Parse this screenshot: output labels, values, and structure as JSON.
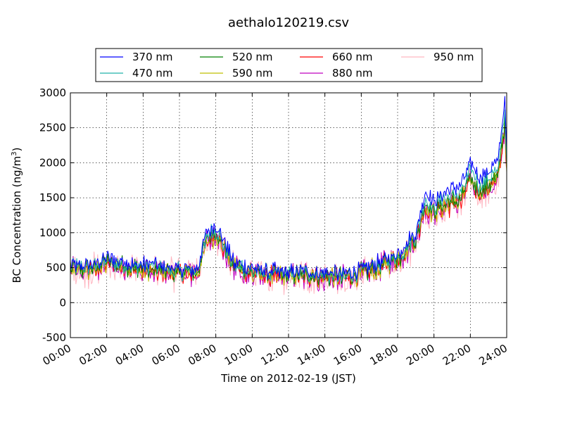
{
  "chart_data": {
    "type": "line",
    "title": "aethalo120219.csv",
    "xlabel": "Time on 2012-02-19 (JST)",
    "ylabel": "BC Concentration (ng/m³)",
    "ylabel_parts": {
      "main": "BC Concentration (ng/m",
      "sup": "3",
      "end": ")"
    },
    "xlim_hours": [
      0,
      24
    ],
    "ylim": [
      -500,
      3000
    ],
    "x_tick_labels": [
      "00:00",
      "02:00",
      "04:00",
      "06:00",
      "08:00",
      "10:00",
      "12:00",
      "14:00",
      "16:00",
      "18:00",
      "20:00",
      "22:00",
      "24:00"
    ],
    "x_tick_hours": [
      0,
      2,
      4,
      6,
      8,
      10,
      12,
      14,
      16,
      18,
      20,
      22,
      24
    ],
    "y_ticks": [
      -500,
      0,
      500,
      1000,
      1500,
      2000,
      2500,
      3000
    ],
    "grid": true,
    "legend_placement": "top, above plot, 4 columns",
    "baseline_keypoints": {
      "hours": [
        0,
        1,
        2,
        3,
        4,
        5,
        6,
        7,
        7.5,
        8,
        9,
        10,
        11,
        12,
        13,
        14,
        15,
        16,
        17,
        18,
        19,
        19.5,
        20,
        20.5,
        21,
        21.5,
        22,
        22.5,
        23,
        23.5,
        23.9,
        24
      ],
      "values": [
        480,
        470,
        560,
        520,
        480,
        470,
        420,
        440,
        900,
        1000,
        520,
        430,
        400,
        380,
        400,
        380,
        360,
        430,
        520,
        620,
        900,
        1400,
        1300,
        1400,
        1450,
        1500,
        1800,
        1600,
        1700,
        1800,
        2600,
        1900
      ]
    },
    "series": [
      {
        "name": "370 nm",
        "color": "#0000ff",
        "scale": 1.12,
        "noise": 55
      },
      {
        "name": "470 nm",
        "color": "#20b2aa",
        "scale": 1.05,
        "noise": 65
      },
      {
        "name": "520 nm",
        "color": "#008000",
        "scale": 1.0,
        "noise": 80
      },
      {
        "name": "590 nm",
        "color": "#bfbf00",
        "scale": 0.98,
        "noise": 100
      },
      {
        "name": "660 nm",
        "color": "#ff0000",
        "scale": 0.97,
        "noise": 100
      },
      {
        "name": "880 nm",
        "color": "#bf00bf",
        "scale": 0.96,
        "noise": 140
      },
      {
        "name": "950 nm",
        "color": "#ffb6c1",
        "scale": 0.95,
        "noise": 190
      }
    ]
  }
}
